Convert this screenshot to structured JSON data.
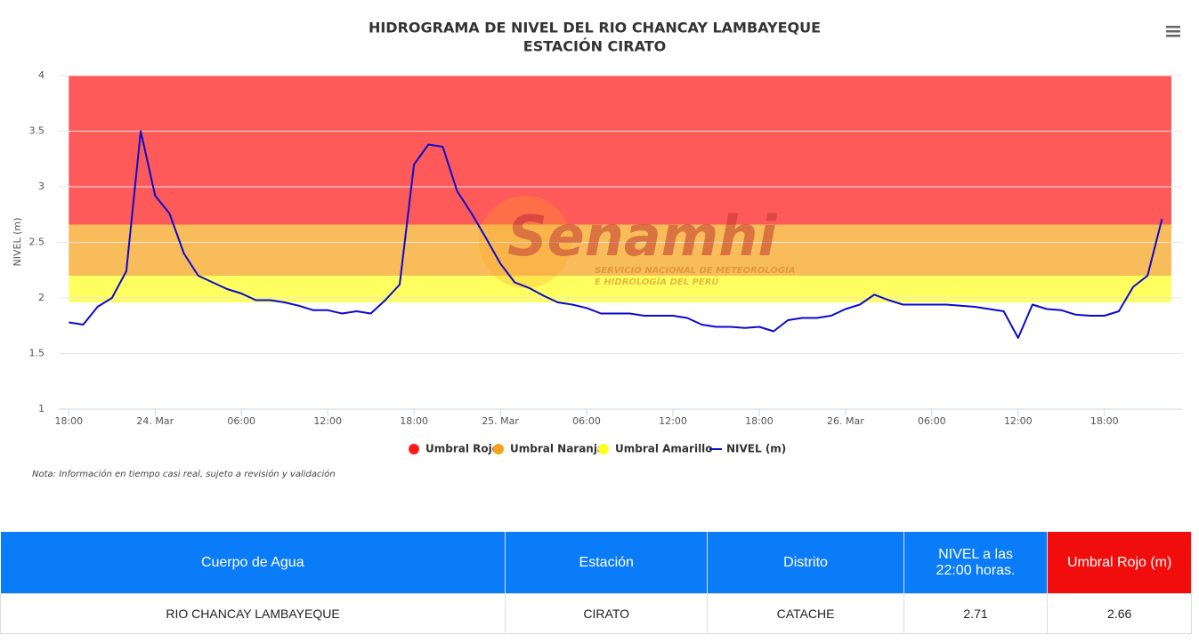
{
  "chart_data": {
    "type": "line",
    "title": "HIDROGRAMA DE NIVEL DEL RIO CHANCAY LAMBAYEQUE",
    "subtitle": "ESTACIÓN CIRATO",
    "y_label": "NIVEL (m)",
    "note": "Nota: Información en tiempo casi real, sujeto a revisión y validación",
    "watermark": {
      "name": "Senamhi",
      "lines": [
        "SERVICIO NACIONAL DE METEOROLOGÍA",
        "E HIDROLOGÍA DEL PERÚ"
      ]
    },
    "x": [
      0,
      1,
      2,
      3,
      4,
      5,
      6,
      7,
      8,
      9,
      10,
      11,
      12,
      13,
      14,
      15,
      16,
      17,
      18,
      19,
      20,
      21,
      22,
      23,
      24,
      25,
      26,
      27,
      28,
      29,
      30,
      31,
      32,
      33,
      34,
      35,
      36,
      37,
      38,
      39,
      40,
      41,
      42,
      43,
      44,
      45,
      46,
      47,
      48,
      49,
      50,
      51,
      52,
      53,
      54,
      55,
      56,
      57,
      58,
      59,
      60,
      61,
      62,
      63,
      64,
      65,
      66,
      67,
      68,
      69,
      70,
      71,
      72,
      73,
      74,
      75,
      76
    ],
    "series": [
      {
        "name": "NIVEL (m)",
        "color": "#0a0acc",
        "values": [
          1.78,
          1.76,
          1.92,
          2.0,
          2.24,
          3.5,
          2.92,
          2.76,
          2.4,
          2.2,
          2.14,
          2.08,
          2.04,
          1.98,
          1.98,
          1.96,
          1.93,
          1.89,
          1.89,
          1.86,
          1.88,
          1.86,
          1.98,
          2.12,
          3.2,
          3.38,
          3.36,
          2.96,
          2.76,
          2.54,
          2.31,
          2.14,
          2.09,
          2.02,
          1.96,
          1.94,
          1.91,
          1.86,
          1.86,
          1.86,
          1.84,
          1.84,
          1.84,
          1.82,
          1.76,
          1.74,
          1.74,
          1.73,
          1.74,
          1.7,
          1.8,
          1.82,
          1.82,
          1.84,
          1.9,
          1.94,
          2.03,
          1.98,
          1.94,
          1.94,
          1.94,
          1.94,
          1.93,
          1.92,
          1.9,
          1.88,
          1.64,
          1.94,
          1.9,
          1.89,
          1.85,
          1.84,
          1.84,
          1.88,
          2.1,
          2.2,
          2.71
        ]
      }
    ],
    "bands": [
      {
        "name": "Umbral Rojo",
        "color": "#ff1a1a",
        "from": 2.66,
        "to": 4
      },
      {
        "name": "Umbral Naranja",
        "color": "#f7a21b",
        "from": 2.2,
        "to": 2.66
      },
      {
        "name": "Umbral Amarillo",
        "color": "#ffff22",
        "from": 1.96,
        "to": 2.2
      }
    ],
    "xlim": [
      -0.7,
      77.4
    ],
    "ylim": [
      1,
      4
    ],
    "xticks": [
      {
        "value": 0,
        "label": "18:00"
      },
      {
        "value": 6,
        "label": "24. Mar"
      },
      {
        "value": 12,
        "label": "06:00"
      },
      {
        "value": 18,
        "label": "12:00"
      },
      {
        "value": 24,
        "label": "18:00"
      },
      {
        "value": 30,
        "label": "25. Mar"
      },
      {
        "value": 36,
        "label": "06:00"
      },
      {
        "value": 42,
        "label": "12:00"
      },
      {
        "value": 48,
        "label": "18:00"
      },
      {
        "value": 54,
        "label": "26. Mar"
      },
      {
        "value": 60,
        "label": "06:00"
      },
      {
        "value": 66,
        "label": "12:00"
      },
      {
        "value": 72,
        "label": "18:00"
      }
    ],
    "yticks": [
      1,
      1.5,
      2,
      2.5,
      3,
      3.5,
      4
    ],
    "grid": true
  },
  "table": {
    "headers": [
      "Cuerpo de Agua",
      "Estación",
      "Distrito",
      "NIVEL a las 22:00 horas.",
      "Umbral Rojo (m)"
    ],
    "rows": [
      [
        "RIO CHANCAY LAMBAYEQUE",
        "CIRATO",
        "CATACHE",
        "2.71",
        "2.66"
      ]
    ]
  }
}
